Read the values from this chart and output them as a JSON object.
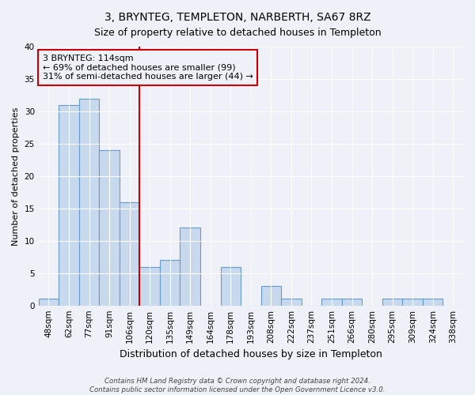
{
  "title": "3, BRYNTEG, TEMPLETON, NARBERTH, SA67 8RZ",
  "subtitle": "Size of property relative to detached houses in Templeton",
  "xlabel": "Distribution of detached houses by size in Templeton",
  "ylabel": "Number of detached properties",
  "bar_labels": [
    "48sqm",
    "62sqm",
    "77sqm",
    "91sqm",
    "106sqm",
    "120sqm",
    "135sqm",
    "149sqm",
    "164sqm",
    "178sqm",
    "193sqm",
    "208sqm",
    "222sqm",
    "237sqm",
    "251sqm",
    "266sqm",
    "280sqm",
    "295sqm",
    "309sqm",
    "324sqm",
    "338sqm"
  ],
  "bar_values": [
    1,
    31,
    32,
    24,
    16,
    6,
    7,
    12,
    0,
    6,
    0,
    3,
    1,
    0,
    1,
    1,
    0,
    1,
    1,
    1,
    0
  ],
  "bar_fill_color": "#c8d9ee",
  "bar_edge_color": "#6699cc",
  "vline_x": 4.5,
  "vline_color": "#cc0000",
  "annotation_text": "3 BRYNTEG: 114sqm\n← 69% of detached houses are smaller (99)\n31% of semi-detached houses are larger (44) →",
  "annotation_box_edgecolor": "#cc0000",
  "ylim": [
    0,
    40
  ],
  "yticks": [
    0,
    5,
    10,
    15,
    20,
    25,
    30,
    35,
    40
  ],
  "footer_line1": "Contains HM Land Registry data © Crown copyright and database right 2024.",
  "footer_line2": "Contains public sector information licensed under the Open Government Licence v3.0.",
  "bg_color": "#eef2f8",
  "grid_color": "#ffffff",
  "title_fontsize": 10,
  "subtitle_fontsize": 9,
  "xlabel_fontsize": 9,
  "ylabel_fontsize": 8,
  "tick_fontsize": 7.5,
  "annotation_fontsize": 8
}
